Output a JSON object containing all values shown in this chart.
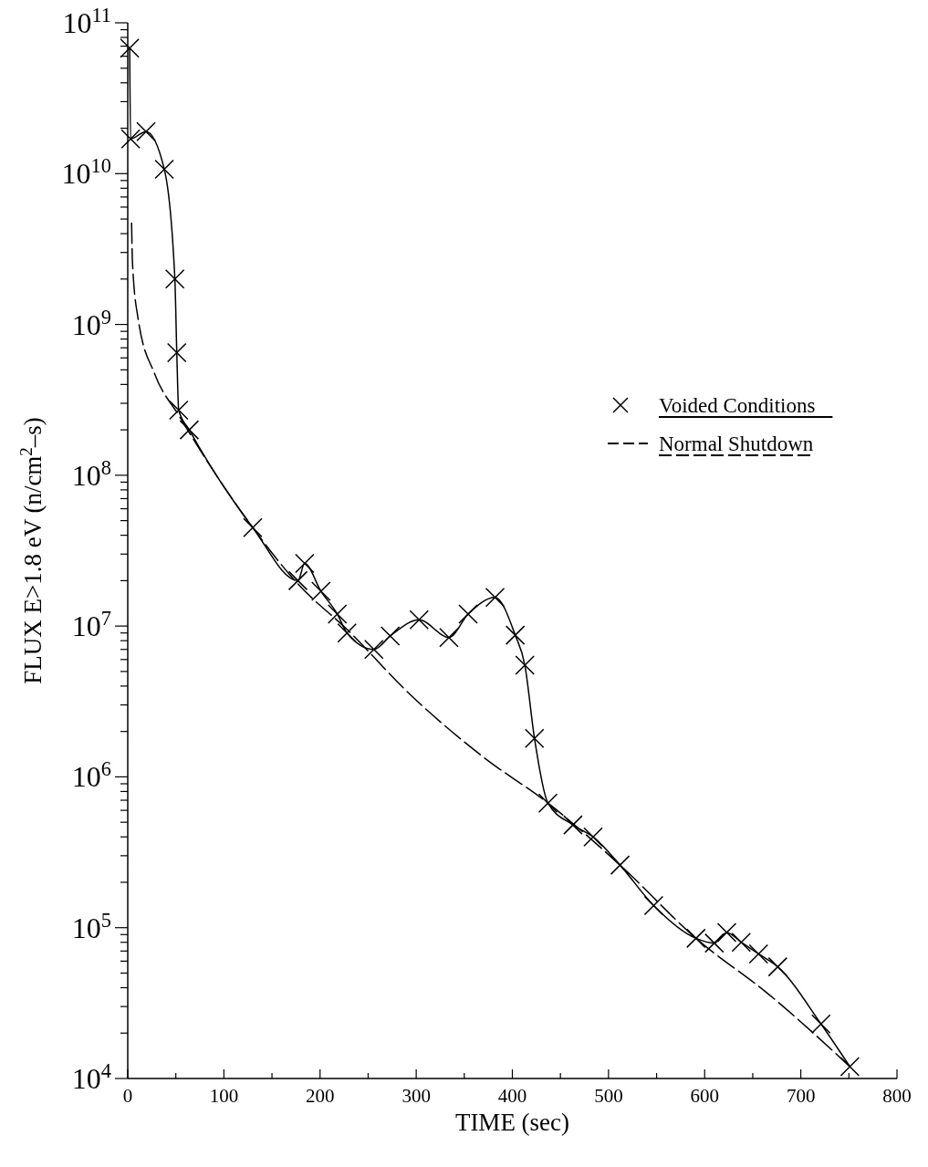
{
  "chart_data": {
    "type": "line",
    "xlabel": "TIME (sec)",
    "ylabel": "FLUX  E>1.8 eV  (n/cm$^{2}$–s)",
    "log": "y",
    "legend": "right",
    "xlim": [
      0,
      800
    ],
    "ylim": [
      10000,
      100000000000
    ],
    "xticks": [
      0,
      {
        "value": 50,
        "label": null
      },
      100,
      {
        "value": 150,
        "label": null
      },
      200,
      {
        "value": 250,
        "label": null
      },
      300,
      {
        "value": 350,
        "label": null
      },
      400,
      {
        "value": 450,
        "label": null
      },
      500,
      {
        "value": 550,
        "label": null
      },
      600,
      {
        "value": 650,
        "label": null
      },
      700,
      {
        "value": 750,
        "label": null
      },
      800
    ],
    "yticks": [
      {
        "value": 10000,
        "label": "10$^{4}$"
      },
      {
        "value": 20000,
        "label": null
      },
      {
        "value": 30000,
        "label": null
      },
      {
        "value": 40000,
        "label": null
      },
      {
        "value": 50000,
        "label": null
      },
      {
        "value": 60000,
        "label": null
      },
      {
        "value": 70000,
        "label": null
      },
      {
        "value": 80000,
        "label": null
      },
      {
        "value": 90000,
        "label": null
      },
      {
        "value": 100000,
        "label": "10$^{5}$"
      },
      {
        "value": 200000,
        "label": null
      },
      {
        "value": 300000,
        "label": null
      },
      {
        "value": 400000,
        "label": null
      },
      {
        "value": 500000,
        "label": null
      },
      {
        "value": 600000,
        "label": null
      },
      {
        "value": 700000,
        "label": null
      },
      {
        "value": 800000,
        "label": null
      },
      {
        "value": 900000,
        "label": null
      },
      {
        "value": 1000000,
        "label": "10$^{6}$"
      },
      {
        "value": 2000000,
        "label": null
      },
      {
        "value": 3000000,
        "label": null
      },
      {
        "value": 4000000,
        "label": null
      },
      {
        "value": 5000000,
        "label": null
      },
      {
        "value": 6000000,
        "label": null
      },
      {
        "value": 7000000,
        "label": null
      },
      {
        "value": 8000000,
        "label": null
      },
      {
        "value": 9000000,
        "label": null
      },
      {
        "value": 10000000,
        "label": "10$^{7}$"
      },
      {
        "value": 20000000,
        "label": null
      },
      {
        "value": 30000000,
        "label": null
      },
      {
        "value": 40000000,
        "label": null
      },
      {
        "value": 50000000,
        "label": null
      },
      {
        "value": 60000000,
        "label": null
      },
      {
        "value": 70000000,
        "label": null
      },
      {
        "value": 80000000,
        "label": null
      },
      {
        "value": 90000000,
        "label": null
      },
      {
        "value": 100000000,
        "label": "10$^{8}$"
      },
      {
        "value": 200000000,
        "label": null
      },
      {
        "value": 300000000,
        "label": null
      },
      {
        "value": 400000000,
        "label": null
      },
      {
        "value": 500000000,
        "label": null
      },
      {
        "value": 600000000,
        "label": null
      },
      {
        "value": 700000000,
        "label": null
      },
      {
        "value": 800000000,
        "label": null
      },
      {
        "value": 900000000,
        "label": null
      },
      {
        "value": 1000000000,
        "label": "10$^{9}$"
      },
      {
        "value": 2000000000,
        "label": null
      },
      {
        "value": 3000000000,
        "label": null
      },
      {
        "value": 4000000000,
        "label": null
      },
      {
        "value": 5000000000,
        "label": null
      },
      {
        "value": 6000000000,
        "label": null
      },
      {
        "value": 7000000000,
        "label": null
      },
      {
        "value": 8000000000,
        "label": null
      },
      {
        "value": 9000000000,
        "label": null
      },
      {
        "value": 10000000000,
        "label": "10$^{10}$"
      },
      {
        "value": 20000000000,
        "label": null
      },
      {
        "value": 30000000000,
        "label": null
      },
      {
        "value": 40000000000,
        "label": null
      },
      {
        "value": 50000000000,
        "label": null
      },
      {
        "value": 60000000000,
        "label": null
      },
      {
        "value": 70000000000,
        "label": null
      },
      {
        "value": 80000000000,
        "label": null
      },
      {
        "value": 90000000000,
        "label": null
      },
      {
        "value": 100000000000,
        "label": "10$^{11}$"
      }
    ],
    "series": [
      {
        "name": "Voided Conditions",
        "color": "#000000",
        "marker": "cross",
        "line_style": "solid",
        "x": [
          2,
          3,
          19,
          38,
          49,
          51,
          53,
          64,
          130,
          177,
          184,
          201,
          218,
          228,
          256,
          273,
          303,
          334,
          354,
          382,
          403,
          413,
          423,
          437,
          463,
          484,
          512,
          547,
          591,
          610,
          623,
          638,
          656,
          676,
          721,
          751
        ],
        "values": [
          68000000000,
          17000000000,
          19000000000,
          10700000000,
          2000000000,
          650000000,
          270000000,
          200000000,
          45000000,
          20000000,
          26000000,
          17000000,
          12000000,
          9000000,
          7000000,
          8600000,
          11000000,
          8400000,
          12000000,
          15500000,
          8700000,
          5500000,
          1800000,
          670000,
          480000,
          400000,
          260000,
          140000,
          85000,
          79000,
          93000,
          80000,
          67000,
          55000,
          23000,
          12000
        ]
      },
      {
        "name": "Normal Shutdown",
        "color": "#000000",
        "marker": "none",
        "line_style": "dashed",
        "x": [
          4,
          5,
          11,
          28,
          53,
          130,
          177,
          228,
          294,
          370,
          437,
          512,
          591,
          667,
          751
        ],
        "values": [
          4700000000,
          2500000000,
          1070000000,
          470000000,
          250000000,
          45000000,
          19000000,
          9500000,
          3500000,
          1350000,
          670000,
          260000,
          85000,
          36000,
          12000
        ]
      }
    ]
  }
}
